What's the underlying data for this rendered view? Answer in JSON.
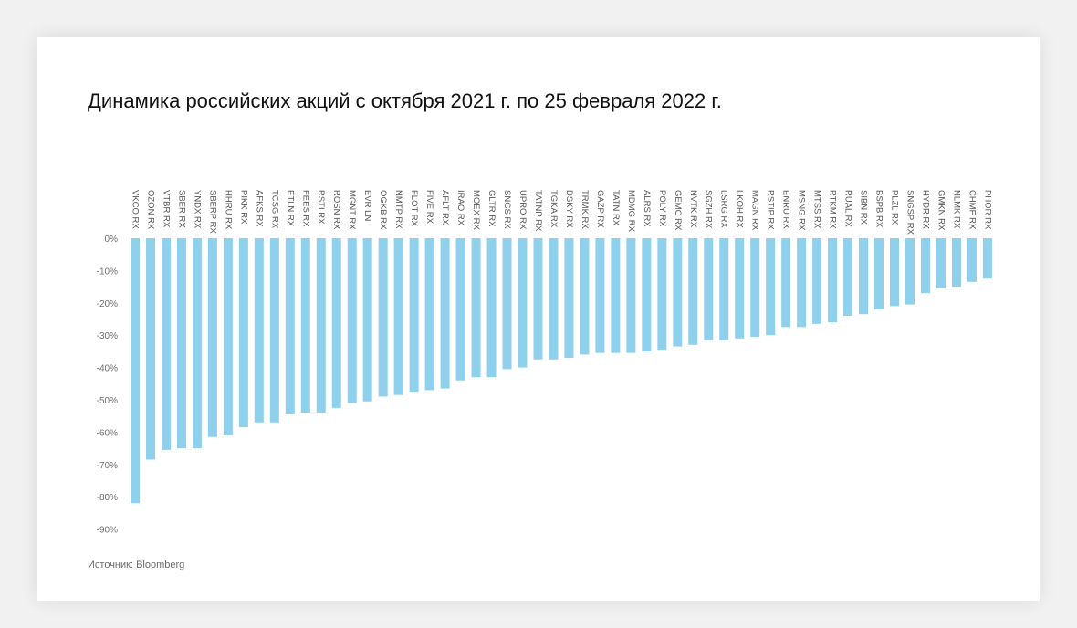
{
  "title": "Динамика российских акций с октября 2021 г. по 25 февраля 2022 г.",
  "source": "Источник: Bloomberg",
  "chart_data": {
    "type": "bar",
    "title": "Динамика российских акций с октября 2021 г. по 25 февраля 2022 г.",
    "xlabel": "",
    "ylabel": "",
    "ylim": [
      -90,
      0
    ],
    "yticks": [
      0,
      -10,
      -20,
      -30,
      -40,
      -50,
      -60,
      -70,
      -80,
      -90
    ],
    "ytick_labels": [
      "0%",
      "-10%",
      "-20%",
      "-30%",
      "-40%",
      "-50%",
      "-60%",
      "-70%",
      "-80%",
      "-90%"
    ],
    "grid": false,
    "legend": "none",
    "bar_color": "#8fd0ed",
    "categories": [
      "VKCO RX",
      "OZON RX",
      "VTBR RX",
      "SBER RX",
      "YNDX RX",
      "SBERP RX",
      "HHRU RX",
      "PIKK RX",
      "AFKS RX",
      "TCSG RX",
      "ETLN RX",
      "FEES RX",
      "RSTI RX",
      "ROSN RX",
      "MGNT RX",
      "EVR LN",
      "OGKB RX",
      "NMTP RX",
      "FLOT RX",
      "FIVE RX",
      "AFLT RX",
      "IRAO RX",
      "MOEX RX",
      "GLTR RX",
      "SNGS RX",
      "UPRO RX",
      "TATNP RX",
      "TGKA RX",
      "DSKY RX",
      "TRMK RX",
      "GAZP RX",
      "TATN RX",
      "MDMG RX",
      "ALRS RX",
      "POLY RX",
      "GEMC RX",
      "NVTK RX",
      "SGZH RX",
      "LSRG RX",
      "LKOH RX",
      "MAGN RX",
      "RSTIP RX",
      "ENRU RX",
      "MSNG RX",
      "MTSS RX",
      "RTKM RX",
      "RUAL RX",
      "SIBN RX",
      "BSPB RX",
      "PLZL RX",
      "SNGSP RX",
      "HYDR RX",
      "GMKN RX",
      "NLMK RX",
      "CHMF RX",
      "PHOR RX"
    ],
    "values": [
      -82,
      -68.5,
      -65.5,
      -65,
      -65,
      -61.5,
      -61,
      -58.5,
      -57,
      -57,
      -54.5,
      -54,
      -54,
      -52.5,
      -51,
      -50.5,
      -49,
      -48.5,
      -47.5,
      -47,
      -46.5,
      -44,
      -43,
      -43,
      -40.5,
      -40,
      -37.5,
      -37.5,
      -37,
      -36,
      -35.5,
      -35.5,
      -35.5,
      -35,
      -34.5,
      -33.5,
      -33,
      -31.5,
      -31.5,
      -31,
      -30.5,
      -30,
      -27.5,
      -27.5,
      -26.5,
      -26,
      -24,
      -23.5,
      -22,
      -21,
      -20.5,
      -17,
      -15.5,
      -15,
      -13.5,
      -12.5
    ]
  }
}
